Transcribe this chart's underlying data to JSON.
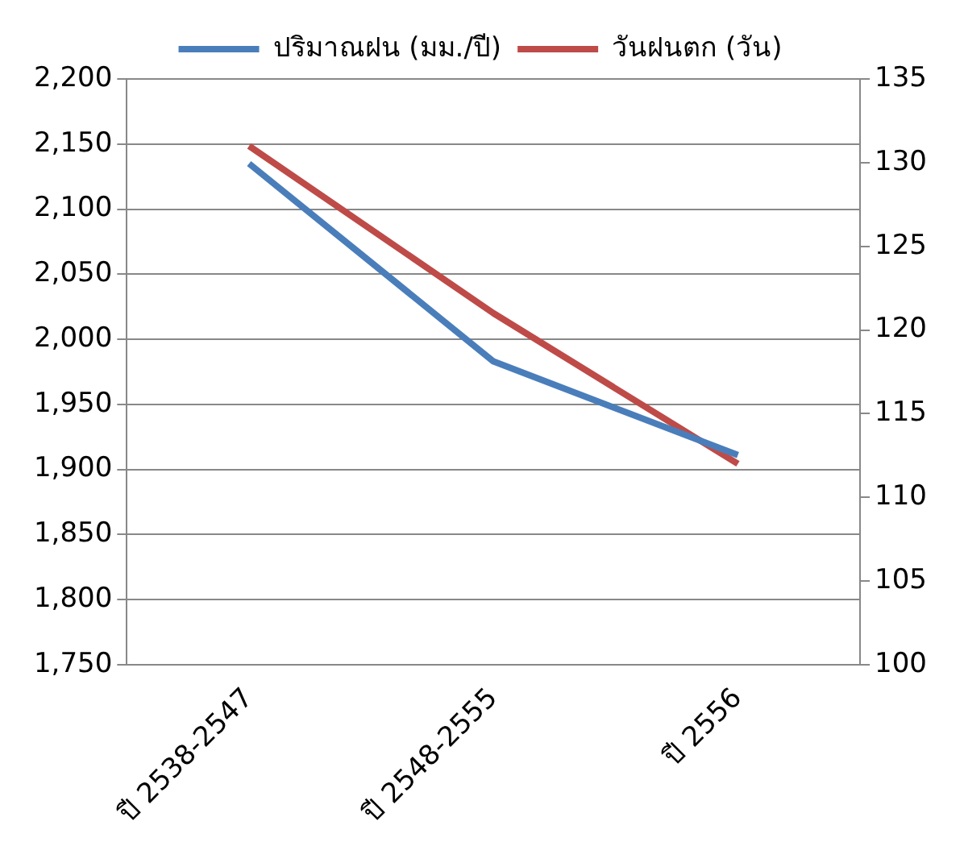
{
  "chart_data": {
    "type": "line",
    "categories": [
      "ปี 2538-2547",
      "ปี 2548-2555",
      "ปี 2556"
    ],
    "series": [
      {
        "name": "ปริมาณฝน (มม./ปี)",
        "color": "#4a7ebb",
        "values": [
          2135,
          1983,
          1911
        ]
      },
      {
        "name": "วันฝนตก (วัน)",
        "color": "#be4b48",
        "values": [
          131,
          121,
          112
        ],
        "axis": "y2"
      }
    ],
    "ylim": [
      1750,
      2200
    ],
    "yticks": [
      {
        "value": 1750,
        "label": "1,750"
      },
      {
        "value": 1800,
        "label": "1,800"
      },
      {
        "value": 1850,
        "label": "1,850"
      },
      {
        "value": 1900,
        "label": "1,900"
      },
      {
        "value": 1950,
        "label": "1,950"
      },
      {
        "value": 2000,
        "label": "2,000"
      },
      {
        "value": 2050,
        "label": "2,050"
      },
      {
        "value": 2100,
        "label": "2,100"
      },
      {
        "value": 2150,
        "label": "2,150"
      },
      {
        "value": 2200,
        "label": "2,200"
      }
    ],
    "y2lim": [
      100,
      135
    ],
    "y2ticks": [
      100,
      105,
      110,
      115,
      120,
      125,
      130,
      135
    ],
    "grid": "y",
    "legend": "top",
    "marker": "none"
  }
}
